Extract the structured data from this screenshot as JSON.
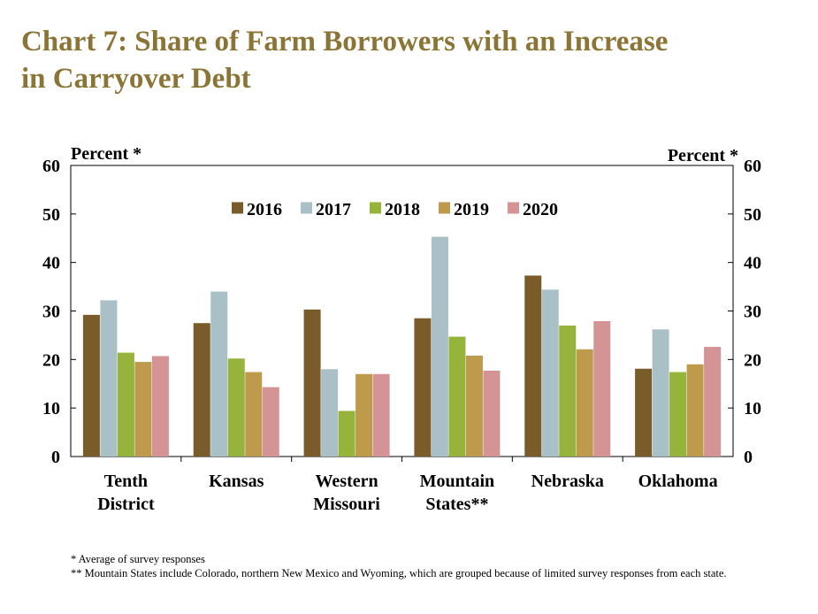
{
  "title_lines": [
    "Chart 7: Share of Farm Borrowers with an Increase",
    "in Carryover Debt"
  ],
  "footnotes": [
    "* Average of survey responses",
    "** Mountain States include Colorado, northern New Mexico and Wyoming, which are grouped because of limited survey responses from each state."
  ],
  "colors": {
    "title": "#8a7436",
    "series": [
      "#7a5c2b",
      "#a9c0c6",
      "#96b43c",
      "#bd9a4c",
      "#d49394"
    ]
  },
  "chart_data": {
    "type": "bar",
    "title": "Chart 7: Share of Farm Borrowers with an Increase in Carryover Debt",
    "ylabel_left": "Percent *",
    "ylabel_right": "Percent *",
    "ylim": [
      0,
      60
    ],
    "yticks": [
      0,
      10,
      20,
      30,
      40,
      50,
      60
    ],
    "legend_position": "top-center",
    "grid": false,
    "categories": [
      [
        "Tenth",
        "District"
      ],
      [
        "Kansas"
      ],
      [
        "Western",
        "Missouri"
      ],
      [
        "Mountain",
        "States**"
      ],
      [
        "Nebraska"
      ],
      [
        "Oklahoma"
      ]
    ],
    "series": [
      {
        "name": "2016",
        "values": [
          29.2,
          27.5,
          30.3,
          28.5,
          37.3,
          18.1
        ]
      },
      {
        "name": "2017",
        "values": [
          32.2,
          34.0,
          18.0,
          45.3,
          34.4,
          26.2
        ]
      },
      {
        "name": "2018",
        "values": [
          21.4,
          20.2,
          9.4,
          24.7,
          27.0,
          17.4
        ]
      },
      {
        "name": "2019",
        "values": [
          19.5,
          17.4,
          17.0,
          20.8,
          22.1,
          19.0
        ]
      },
      {
        "name": "2020",
        "values": [
          20.7,
          14.3,
          17.0,
          17.7,
          27.9,
          22.6
        ]
      }
    ]
  }
}
